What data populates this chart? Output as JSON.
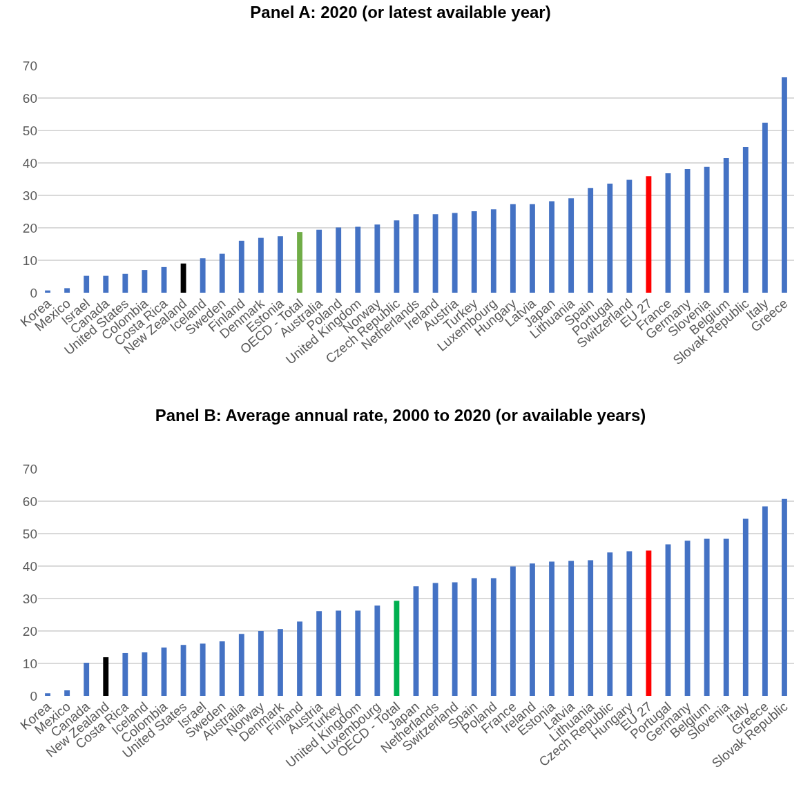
{
  "chart_data": [
    {
      "type": "bar",
      "title": "Panel A: 2020 (or latest available year)",
      "categories": [
        "Korea",
        "Mexico",
        "Israel",
        "Canada",
        "United States",
        "Colombia",
        "Costa Rica",
        "New Zealand",
        "Iceland",
        "Sweden",
        "Finland",
        "Denmark",
        "Estonia",
        "OECD - Total",
        "Australia",
        "Poland",
        "United Kingdom",
        "Norway",
        "Czech Republic",
        "Netherlands",
        "Ireland",
        "Austria",
        "Turkey",
        "Luxembourg",
        "Hungary",
        "Latvia",
        "Japan",
        "Lithuania",
        "Spain",
        "Portugal",
        "Switzerland",
        "EU 27",
        "France",
        "Germany",
        "Slovenia",
        "Belgium",
        "Slovak Republic",
        "Italy",
        "Greece"
      ],
      "values": [
        0.7,
        1.4,
        5.2,
        5.2,
        5.8,
        7.0,
        7.9,
        9.0,
        10.6,
        12.0,
        16.0,
        16.9,
        17.4,
        18.7,
        19.4,
        20.1,
        20.3,
        21.0,
        22.3,
        24.2,
        24.2,
        24.6,
        25.1,
        25.7,
        27.3,
        27.3,
        28.2,
        29.1,
        32.3,
        33.6,
        34.8,
        35.9,
        36.8,
        38.1,
        38.8,
        41.5,
        44.9,
        52.4,
        66.4
      ],
      "colors": [
        "#4472c4",
        "#4472c4",
        "#4472c4",
        "#4472c4",
        "#4472c4",
        "#4472c4",
        "#4472c4",
        "#000000",
        "#4472c4",
        "#4472c4",
        "#4472c4",
        "#4472c4",
        "#4472c4",
        "#70ad47",
        "#4472c4",
        "#4472c4",
        "#4472c4",
        "#4472c4",
        "#4472c4",
        "#4472c4",
        "#4472c4",
        "#4472c4",
        "#4472c4",
        "#4472c4",
        "#4472c4",
        "#4472c4",
        "#4472c4",
        "#4472c4",
        "#4472c4",
        "#4472c4",
        "#4472c4",
        "#ff0000",
        "#4472c4",
        "#4472c4",
        "#4472c4",
        "#4472c4",
        "#4472c4",
        "#4472c4",
        "#4472c4"
      ],
      "ylim": [
        0,
        70
      ],
      "yticks": [
        0,
        10,
        20,
        30,
        40,
        50,
        60,
        70
      ],
      "grid": "y"
    },
    {
      "type": "bar",
      "title": "Panel B: Average annual rate, 2000 to 2020 (or available years)",
      "categories": [
        "Korea",
        "Mexico",
        "Canada",
        "New Zealand",
        "Costa Rica",
        "Iceland",
        "Colombia",
        "United States",
        "Israel",
        "Sweden",
        "Australia",
        "Norway",
        "Denmark",
        "Finland",
        "Austria",
        "Turkey",
        "United Kingdom",
        "Luxembourg",
        "OECD - Total",
        "Japan",
        "Netherlands",
        "Switzerland",
        "Spain",
        "Poland",
        "France",
        "Ireland",
        "Estonia",
        "Latvia",
        "Lithuania",
        "Czech Republic",
        "Hungary",
        "EU 27",
        "Portugal",
        "Germany",
        "Belgium",
        "Slovenia",
        "Italy",
        "Greece",
        "Slovak Republic"
      ],
      "values": [
        0.8,
        1.7,
        10.2,
        11.9,
        13.2,
        13.4,
        14.9,
        15.7,
        16.1,
        16.8,
        19.1,
        20.0,
        20.6,
        22.9,
        26.1,
        26.3,
        26.3,
        27.8,
        29.3,
        33.8,
        34.8,
        35.0,
        36.3,
        36.3,
        39.9,
        40.8,
        41.4,
        41.6,
        41.8,
        44.2,
        44.6,
        44.8,
        46.7,
        47.8,
        48.4,
        48.4,
        54.6,
        58.4,
        60.7
      ],
      "colors": [
        "#4472c4",
        "#4472c4",
        "#4472c4",
        "#000000",
        "#4472c4",
        "#4472c4",
        "#4472c4",
        "#4472c4",
        "#4472c4",
        "#4472c4",
        "#4472c4",
        "#4472c4",
        "#4472c4",
        "#4472c4",
        "#4472c4",
        "#4472c4",
        "#4472c4",
        "#4472c4",
        "#00b050",
        "#4472c4",
        "#4472c4",
        "#4472c4",
        "#4472c4",
        "#4472c4",
        "#4472c4",
        "#4472c4",
        "#4472c4",
        "#4472c4",
        "#4472c4",
        "#4472c4",
        "#4472c4",
        "#ff0000",
        "#4472c4",
        "#4472c4",
        "#4472c4",
        "#4472c4",
        "#4472c4",
        "#4472c4",
        "#4472c4"
      ],
      "ylim": [
        0,
        70
      ],
      "yticks": [
        0,
        10,
        20,
        30,
        40,
        50,
        60,
        70
      ],
      "grid": "y"
    }
  ]
}
